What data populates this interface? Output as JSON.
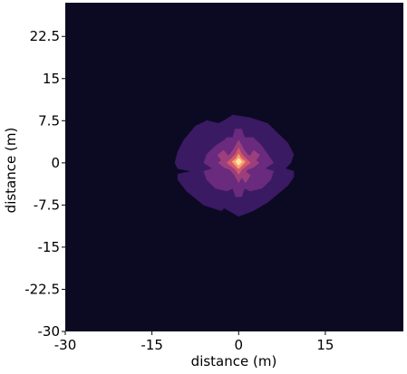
{
  "chart_data": {
    "type": "heatmap",
    "style": "filled-contour",
    "colormap": "magma",
    "title": "",
    "xlabel": "distance (m)",
    "ylabel": "distance (m)",
    "xlim": [
      -30,
      28.5
    ],
    "ylim": [
      -30,
      28.5
    ],
    "x_ticks": [
      -30,
      -15,
      0,
      15
    ],
    "x_tick_labels": [
      "-30",
      "-15",
      "0",
      "15"
    ],
    "y_ticks": [
      -30,
      -22.5,
      -15,
      -7.5,
      0,
      7.5,
      15,
      22.5
    ],
    "y_tick_labels": [
      "-30",
      "-22.5",
      "-15",
      "-7.5",
      "0",
      "7.5",
      "15",
      "22.5"
    ],
    "grid": false,
    "legend": "none",
    "colors": {
      "background": "#0b0a22",
      "level_1": "#3a1a63",
      "level_2": "#6a2a7e",
      "level_3": "#9c3f7c",
      "level_4": "#d35a6a",
      "level_5": "#f6a070",
      "peak": "#fde3a2"
    },
    "contours": [
      {
        "level": 1,
        "color": "level_1",
        "points": [
          [
            -1,
            8.5
          ],
          [
            -2.5,
            7.5
          ],
          [
            -3.5,
            7
          ],
          [
            -5.5,
            7.5
          ],
          [
            -7.5,
            6.5
          ],
          [
            -9.5,
            4
          ],
          [
            -10.5,
            2
          ],
          [
            -11,
            0
          ],
          [
            -10.5,
            -1
          ],
          [
            -8,
            -1.5
          ],
          [
            -10.5,
            -2
          ],
          [
            -10.5,
            -3
          ],
          [
            -9,
            -5
          ],
          [
            -6,
            -7.5
          ],
          [
            -3,
            -8.5
          ],
          [
            -2.5,
            -8
          ],
          [
            0,
            -9.5
          ],
          [
            2.5,
            -8.5
          ],
          [
            5,
            -7
          ],
          [
            8.5,
            -4
          ],
          [
            9.5,
            -2.5
          ],
          [
            9.5,
            -1.5
          ],
          [
            8,
            -1
          ],
          [
            9,
            0
          ],
          [
            9.5,
            1.5
          ],
          [
            8.5,
            3.5
          ],
          [
            5,
            7
          ],
          [
            2,
            8
          ]
        ]
      },
      {
        "level": 2,
        "color": "level_2",
        "points": [
          [
            -0.6,
            6
          ],
          [
            -1,
            4.5
          ],
          [
            -2,
            4.5
          ],
          [
            -2.5,
            4
          ],
          [
            -4,
            3
          ],
          [
            -5.5,
            1.5
          ],
          [
            -6,
            0
          ],
          [
            -4.5,
            -1
          ],
          [
            -6,
            -1.5
          ],
          [
            -5.5,
            -3
          ],
          [
            -4,
            -4.5
          ],
          [
            -2,
            -5
          ],
          [
            -1,
            -4.5
          ],
          [
            -0.5,
            -6
          ],
          [
            0.5,
            -6
          ],
          [
            1,
            -4.5
          ],
          [
            2,
            -5
          ],
          [
            4,
            -4.5
          ],
          [
            5.5,
            -3
          ],
          [
            6,
            -1.5
          ],
          [
            4.5,
            -1
          ],
          [
            6,
            0
          ],
          [
            5,
            1.5
          ],
          [
            4,
            3
          ],
          [
            2.5,
            4.5
          ],
          [
            1,
            4.5
          ],
          [
            0.5,
            6
          ]
        ]
      },
      {
        "level": 3,
        "color": "level_3",
        "points": [
          [
            0,
            4
          ],
          [
            -0.8,
            2.5
          ],
          [
            -1.5,
            1.5
          ],
          [
            -2.5,
            0.8
          ],
          [
            -3.5,
            0
          ],
          [
            -2.5,
            -0.8
          ],
          [
            -1.5,
            -1.2
          ],
          [
            -0.8,
            -2
          ],
          [
            0,
            -3.5
          ],
          [
            0.8,
            -2
          ],
          [
            1.5,
            -1.2
          ],
          [
            2.5,
            -0.8
          ],
          [
            3.5,
            0
          ],
          [
            2.5,
            0.8
          ],
          [
            1.5,
            1.5
          ],
          [
            0.8,
            2.5
          ]
        ]
      },
      {
        "level": 4,
        "color": "level_4",
        "points": [
          [
            0,
            2.6
          ],
          [
            -0.5,
            1.5
          ],
          [
            -1.2,
            0.8
          ],
          [
            -2,
            0
          ],
          [
            -1.2,
            -0.6
          ],
          [
            -0.5,
            -1.2
          ],
          [
            0,
            -2
          ],
          [
            0.5,
            -1.2
          ],
          [
            1.2,
            -0.6
          ],
          [
            2,
            0
          ],
          [
            1.2,
            0.8
          ],
          [
            0.5,
            1.5
          ]
        ]
      },
      {
        "level": 5,
        "color": "level_5",
        "points": [
          [
            0,
            1.5
          ],
          [
            -0.4,
            0.8
          ],
          [
            -1.1,
            0.2
          ],
          [
            -0.5,
            -0.5
          ],
          [
            0,
            -1
          ],
          [
            0.5,
            -0.5
          ],
          [
            1.1,
            0.2
          ],
          [
            0.4,
            0.8
          ]
        ]
      },
      {
        "level": 6,
        "color": "peak",
        "points": [
          [
            0,
            0.8
          ],
          [
            -0.5,
            0.2
          ],
          [
            0,
            -0.4
          ],
          [
            0.5,
            0.2
          ]
        ]
      },
      {
        "level": 2,
        "color": "level_2",
        "points": [
          [
            -5,
            -1.8
          ],
          [
            -4,
            -3
          ],
          [
            -3,
            -2.2
          ],
          [
            -4,
            -1.2
          ]
        ]
      },
      {
        "level": 3,
        "color": "level_3",
        "points": [
          [
            -3.6,
            1.4
          ],
          [
            -2.8,
            0.2
          ],
          [
            -1.8,
            1.2
          ],
          [
            -2.6,
            2.2
          ]
        ]
      },
      {
        "level": 3,
        "color": "level_3",
        "points": [
          [
            2.0,
            1.2
          ],
          [
            2.8,
            0.2
          ],
          [
            3.6,
            1.4
          ],
          [
            2.6,
            2.2
          ]
        ]
      },
      {
        "level": 3,
        "color": "level_3",
        "points": [
          [
            1.2,
            -3.5
          ],
          [
            2.0,
            -2.2
          ],
          [
            1.2,
            -1.6
          ],
          [
            0.6,
            -2.6
          ]
        ]
      }
    ]
  }
}
